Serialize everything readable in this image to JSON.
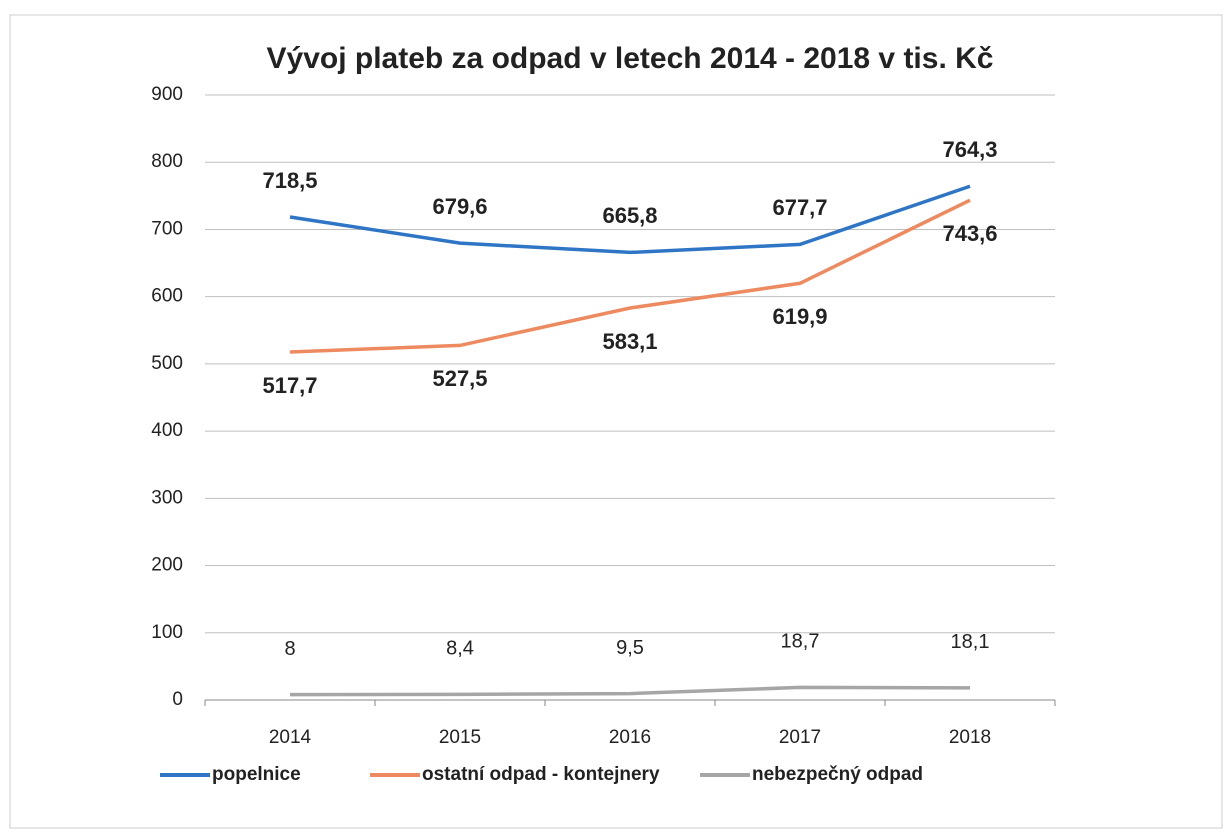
{
  "chart_data": {
    "type": "line",
    "title": "Vývoj plateb za odpad v letech 2014 - 2018 v tis. Kč",
    "categories": [
      "2014",
      "2015",
      "2016",
      "2017",
      "2018"
    ],
    "series": [
      {
        "name": "popelnice",
        "color": "#2e75c6",
        "values": [
          718.5,
          679.6,
          665.8,
          677.7,
          764.3
        ],
        "value_labels": [
          "718,5",
          "679,6",
          "665,8",
          "677,7",
          "764,3"
        ]
      },
      {
        "name": "ostatní odpad - kontejnery",
        "color": "#ee8a5f",
        "values": [
          517.7,
          527.5,
          583.1,
          619.9,
          743.6
        ],
        "value_labels": [
          "517,7",
          "527,5",
          "583,1",
          "619,9",
          "743,6"
        ]
      },
      {
        "name": "nebezpečný odpad",
        "color": "#a6a6a6",
        "values": [
          8,
          8.4,
          9.5,
          18.7,
          18.1
        ],
        "value_labels": [
          "8",
          "8,4",
          "9,5",
          "18,7",
          "18,1"
        ]
      }
    ],
    "ylim": [
      0,
      900
    ],
    "yticks": [
      0,
      100,
      200,
      300,
      400,
      500,
      600,
      700,
      800,
      900
    ],
    "grid": true,
    "legend": "bottom"
  }
}
